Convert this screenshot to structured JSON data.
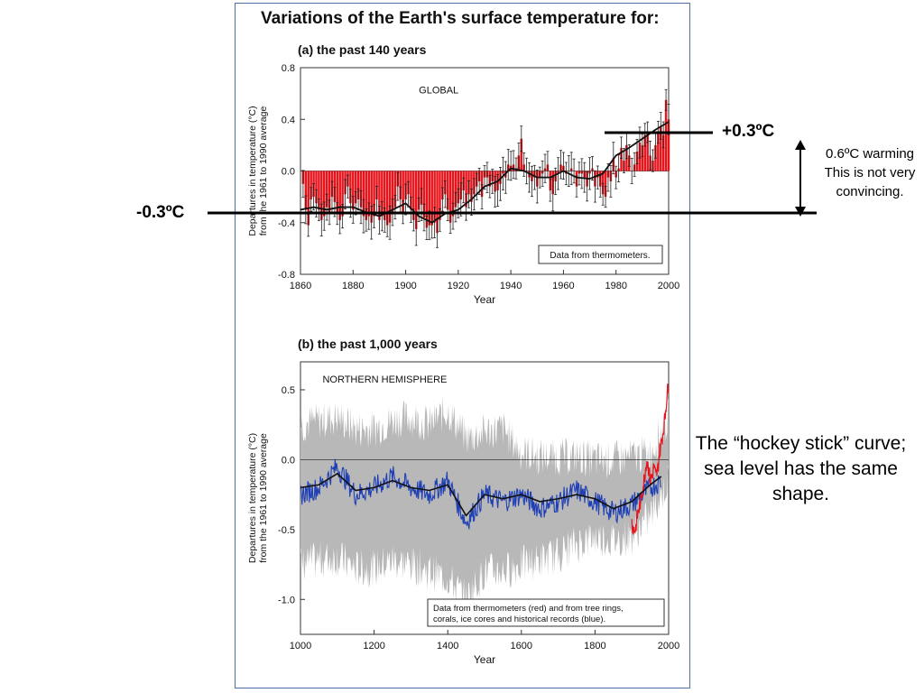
{
  "title": "Variations of the Earth's surface temperature for:",
  "chart_data": [
    {
      "type": "bar",
      "subtitle": "(a) the past 140 years",
      "region_label": "GLOBAL",
      "xlabel": "Year",
      "ylabel_lines": [
        "Departures in temperature (°C)",
        "from the 1961 to 1990 average"
      ],
      "xlim": [
        1860,
        2000
      ],
      "ylim": [
        -0.8,
        0.8
      ],
      "x_ticks": [
        1860,
        1880,
        1900,
        1920,
        1940,
        1960,
        1980,
        2000
      ],
      "y_ticks": [
        -0.8,
        -0.4,
        0.0,
        0.4,
        0.8
      ],
      "y_tick_labels": [
        "-0.8",
        "-0.4",
        "0.0",
        "0.4",
        "0.8"
      ],
      "legend": "Data from thermometers.",
      "series": [
        {
          "name": "Annual anomaly",
          "color": "#e8141b",
          "x_start": 1861,
          "values": [
            -0.1,
            -0.3,
            -0.42,
            -0.22,
            -0.2,
            -0.25,
            -0.3,
            -0.38,
            -0.35,
            -0.28,
            -0.32,
            -0.2,
            -0.24,
            -0.33,
            -0.38,
            -0.35,
            -0.18,
            -0.12,
            -0.25,
            -0.3,
            -0.25,
            -0.22,
            -0.28,
            -0.35,
            -0.38,
            -0.35,
            -0.4,
            -0.35,
            -0.22,
            -0.38,
            -0.35,
            -0.38,
            -0.42,
            -0.4,
            -0.32,
            -0.28,
            -0.12,
            -0.22,
            -0.32,
            -0.22,
            -0.18,
            -0.3,
            -0.38,
            -0.45,
            -0.3,
            -0.26,
            -0.36,
            -0.44,
            -0.42,
            -0.42,
            -0.4,
            -0.48,
            -0.38,
            -0.22,
            -0.18,
            -0.3,
            -0.4,
            -0.35,
            -0.28,
            -0.25,
            -0.22,
            -0.15,
            -0.28,
            -0.18,
            -0.24,
            -0.18,
            -0.12,
            -0.08,
            -0.2,
            -0.05,
            -0.05,
            -0.12,
            -0.08,
            -0.16,
            -0.15,
            -0.1,
            -0.02,
            -0.05,
            0.05,
            0.04,
            0.05,
            0.02,
            0.12,
            0.25,
            0.05,
            0.0,
            -0.05,
            -0.08,
            -0.05,
            -0.12,
            -0.05,
            -0.02,
            0.02,
            0.05,
            -0.15,
            -0.18,
            -0.08,
            -0.02,
            0.05,
            0.04,
            -0.02,
            0.0,
            0.02,
            0.0,
            -0.12,
            -0.02,
            -0.02,
            -0.05,
            -0.12,
            -0.02,
            0.02,
            -0.12,
            -0.05,
            -0.12,
            -0.18,
            -0.2,
            -0.05,
            -0.08,
            0.1,
            -0.05,
            0.02,
            0.18,
            0.08,
            0.2,
            0.12,
            0.0,
            0.05,
            0.15,
            0.22,
            0.2,
            0.28,
            0.3,
            0.12,
            0.08,
            0.2,
            0.3,
            0.35,
            0.28,
            0.55,
            0.4
          ]
        },
        {
          "name": "Smoothed",
          "color": "#111111",
          "x": [
            1860,
            1865,
            1870,
            1875,
            1880,
            1885,
            1890,
            1895,
            1900,
            1905,
            1910,
            1915,
            1920,
            1925,
            1930,
            1935,
            1940,
            1945,
            1950,
            1955,
            1960,
            1965,
            1970,
            1975,
            1980,
            1985,
            1990,
            1995,
            2000
          ],
          "values": [
            -0.3,
            -0.28,
            -0.3,
            -0.28,
            -0.28,
            -0.32,
            -0.35,
            -0.3,
            -0.25,
            -0.35,
            -0.4,
            -0.33,
            -0.3,
            -0.22,
            -0.12,
            -0.08,
            0.02,
            0.0,
            -0.05,
            -0.05,
            0.0,
            -0.05,
            -0.06,
            -0.02,
            0.12,
            0.18,
            0.25,
            0.32,
            0.38
          ]
        }
      ]
    },
    {
      "type": "line",
      "subtitle": "(b) the past 1,000 years",
      "region_label": "NORTHERN HEMISPHERE",
      "xlabel": "Year",
      "ylabel_lines": [
        "Departures in temperature (°C)",
        "from the 1961 to 1990 average"
      ],
      "xlim": [
        1000,
        2000
      ],
      "ylim": [
        -1.25,
        0.7
      ],
      "x_ticks": [
        1000,
        1200,
        1400,
        1600,
        1800,
        2000
      ],
      "y_ticks": [
        -1.0,
        -0.5,
        0.0,
        0.5
      ],
      "y_tick_labels": [
        "-1.0",
        "-0.5",
        "0.0",
        "0.5"
      ],
      "legend_lines": [
        "Data from thermometers (red) and from tree rings,",
        "corals, ice cores and historical records (blue)."
      ],
      "series": [
        {
          "name": "Uncertainty range",
          "color": "#b8b8b8",
          "x": [
            1000,
            1050,
            1100,
            1150,
            1200,
            1250,
            1300,
            1350,
            1400,
            1450,
            1500,
            1550,
            1600,
            1650,
            1700,
            1750,
            1800,
            1850,
            1900,
            1950,
            2000
          ],
          "upper": [
            0.25,
            0.28,
            0.3,
            0.22,
            0.22,
            0.28,
            0.3,
            0.25,
            0.35,
            0.15,
            0.2,
            0.22,
            0.05,
            0.02,
            0.02,
            0.02,
            0.0,
            0.0,
            0.02,
            0.05,
            0.3
          ],
          "lower": [
            -0.75,
            -0.72,
            -0.7,
            -0.78,
            -0.78,
            -0.72,
            -0.75,
            -0.8,
            -0.85,
            -1.0,
            -0.8,
            -0.8,
            -0.75,
            -0.72,
            -0.68,
            -0.6,
            -0.55,
            -0.58,
            -0.55,
            -0.4,
            -0.15
          ]
        },
        {
          "name": "Proxy records (blue)",
          "color": "#1f3fb5",
          "x": [
            1000,
            1050,
            1100,
            1150,
            1200,
            1250,
            1300,
            1350,
            1400,
            1450,
            1500,
            1550,
            1600,
            1650,
            1700,
            1750,
            1800,
            1850,
            1900,
            1950,
            1980
          ],
          "values": [
            -0.25,
            -0.2,
            -0.05,
            -0.25,
            -0.2,
            -0.12,
            -0.2,
            -0.25,
            -0.15,
            -0.45,
            -0.25,
            -0.3,
            -0.25,
            -0.35,
            -0.3,
            -0.22,
            -0.3,
            -0.38,
            -0.32,
            -0.2,
            -0.15
          ]
        },
        {
          "name": "Smoothed (black)",
          "color": "#111111",
          "x": [
            1000,
            1050,
            1100,
            1150,
            1200,
            1250,
            1300,
            1350,
            1400,
            1450,
            1500,
            1550,
            1600,
            1650,
            1700,
            1750,
            1800,
            1850,
            1900,
            1950,
            1980
          ],
          "values": [
            -0.2,
            -0.18,
            -0.1,
            -0.22,
            -0.2,
            -0.15,
            -0.2,
            -0.22,
            -0.18,
            -0.4,
            -0.25,
            -0.28,
            -0.25,
            -0.3,
            -0.28,
            -0.25,
            -0.28,
            -0.35,
            -0.3,
            -0.18,
            -0.12
          ]
        },
        {
          "name": "Thermometers (red)",
          "color": "#e8141b",
          "x": [
            1900,
            1905,
            1910,
            1915,
            1920,
            1925,
            1930,
            1935,
            1940,
            1945,
            1950,
            1955,
            1960,
            1965,
            1970,
            1975,
            1980,
            1985,
            1990,
            1995,
            2000
          ],
          "values": [
            -0.45,
            -0.5,
            -0.5,
            -0.4,
            -0.35,
            -0.28,
            -0.2,
            -0.12,
            0.0,
            -0.05,
            -0.15,
            -0.12,
            -0.05,
            -0.12,
            -0.08,
            0.05,
            0.12,
            0.2,
            0.3,
            0.45,
            0.55
          ]
        }
      ]
    }
  ],
  "annotations": {
    "plus_label": "+0.3ºC",
    "minus_label": "-0.3ºC",
    "warming_note": "0.6ºC warming This is not very convincing.",
    "hockey_note": "The “hockey stick” curve; sea level has the same shape."
  }
}
